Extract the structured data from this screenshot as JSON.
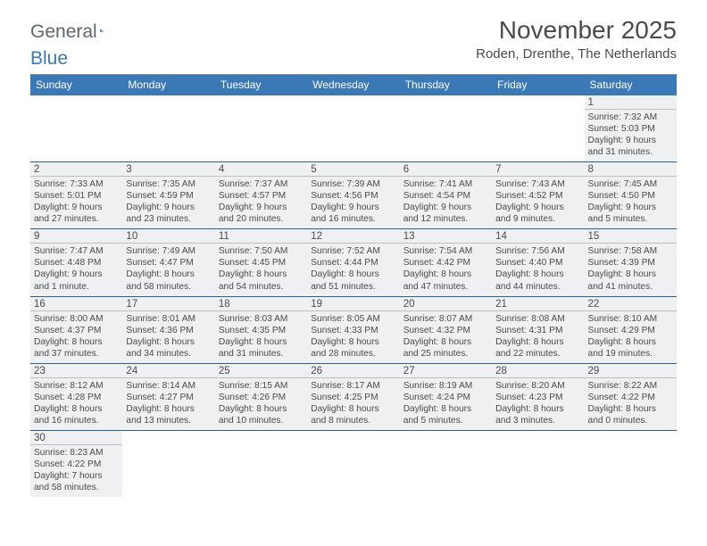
{
  "logo": {
    "text1": "General",
    "text2": "Blue"
  },
  "title": "November 2025",
  "location": "Roden, Drenthe, The Netherlands",
  "weekdays": [
    "Sunday",
    "Monday",
    "Tuesday",
    "Wednesday",
    "Thursday",
    "Friday",
    "Saturday"
  ],
  "colors": {
    "header_bg": "#3a78b6",
    "header_text": "#ffffff",
    "row_border": "#2a5e99",
    "cell_bg": "#eef0f1",
    "text": "#4b4b4b",
    "logo_grey": "#5c6770",
    "logo_blue": "#3a78b6"
  },
  "weeks": [
    [
      {
        "day": ""
      },
      {
        "day": ""
      },
      {
        "day": ""
      },
      {
        "day": ""
      },
      {
        "day": ""
      },
      {
        "day": ""
      },
      {
        "day": "1",
        "sunrise": "Sunrise: 7:32 AM",
        "sunset": "Sunset: 5:03 PM",
        "daylight": "Daylight: 9 hours and 31 minutes."
      }
    ],
    [
      {
        "day": "2",
        "sunrise": "Sunrise: 7:33 AM",
        "sunset": "Sunset: 5:01 PM",
        "daylight": "Daylight: 9 hours and 27 minutes."
      },
      {
        "day": "3",
        "sunrise": "Sunrise: 7:35 AM",
        "sunset": "Sunset: 4:59 PM",
        "daylight": "Daylight: 9 hours and 23 minutes."
      },
      {
        "day": "4",
        "sunrise": "Sunrise: 7:37 AM",
        "sunset": "Sunset: 4:57 PM",
        "daylight": "Daylight: 9 hours and 20 minutes."
      },
      {
        "day": "5",
        "sunrise": "Sunrise: 7:39 AM",
        "sunset": "Sunset: 4:56 PM",
        "daylight": "Daylight: 9 hours and 16 minutes."
      },
      {
        "day": "6",
        "sunrise": "Sunrise: 7:41 AM",
        "sunset": "Sunset: 4:54 PM",
        "daylight": "Daylight: 9 hours and 12 minutes."
      },
      {
        "day": "7",
        "sunrise": "Sunrise: 7:43 AM",
        "sunset": "Sunset: 4:52 PM",
        "daylight": "Daylight: 9 hours and 9 minutes."
      },
      {
        "day": "8",
        "sunrise": "Sunrise: 7:45 AM",
        "sunset": "Sunset: 4:50 PM",
        "daylight": "Daylight: 9 hours and 5 minutes."
      }
    ],
    [
      {
        "day": "9",
        "sunrise": "Sunrise: 7:47 AM",
        "sunset": "Sunset: 4:48 PM",
        "daylight": "Daylight: 9 hours and 1 minute."
      },
      {
        "day": "10",
        "sunrise": "Sunrise: 7:49 AM",
        "sunset": "Sunset: 4:47 PM",
        "daylight": "Daylight: 8 hours and 58 minutes."
      },
      {
        "day": "11",
        "sunrise": "Sunrise: 7:50 AM",
        "sunset": "Sunset: 4:45 PM",
        "daylight": "Daylight: 8 hours and 54 minutes."
      },
      {
        "day": "12",
        "sunrise": "Sunrise: 7:52 AM",
        "sunset": "Sunset: 4:44 PM",
        "daylight": "Daylight: 8 hours and 51 minutes."
      },
      {
        "day": "13",
        "sunrise": "Sunrise: 7:54 AM",
        "sunset": "Sunset: 4:42 PM",
        "daylight": "Daylight: 8 hours and 47 minutes."
      },
      {
        "day": "14",
        "sunrise": "Sunrise: 7:56 AM",
        "sunset": "Sunset: 4:40 PM",
        "daylight": "Daylight: 8 hours and 44 minutes."
      },
      {
        "day": "15",
        "sunrise": "Sunrise: 7:58 AM",
        "sunset": "Sunset: 4:39 PM",
        "daylight": "Daylight: 8 hours and 41 minutes."
      }
    ],
    [
      {
        "day": "16",
        "sunrise": "Sunrise: 8:00 AM",
        "sunset": "Sunset: 4:37 PM",
        "daylight": "Daylight: 8 hours and 37 minutes."
      },
      {
        "day": "17",
        "sunrise": "Sunrise: 8:01 AM",
        "sunset": "Sunset: 4:36 PM",
        "daylight": "Daylight: 8 hours and 34 minutes."
      },
      {
        "day": "18",
        "sunrise": "Sunrise: 8:03 AM",
        "sunset": "Sunset: 4:35 PM",
        "daylight": "Daylight: 8 hours and 31 minutes."
      },
      {
        "day": "19",
        "sunrise": "Sunrise: 8:05 AM",
        "sunset": "Sunset: 4:33 PM",
        "daylight": "Daylight: 8 hours and 28 minutes."
      },
      {
        "day": "20",
        "sunrise": "Sunrise: 8:07 AM",
        "sunset": "Sunset: 4:32 PM",
        "daylight": "Daylight: 8 hours and 25 minutes."
      },
      {
        "day": "21",
        "sunrise": "Sunrise: 8:08 AM",
        "sunset": "Sunset: 4:31 PM",
        "daylight": "Daylight: 8 hours and 22 minutes."
      },
      {
        "day": "22",
        "sunrise": "Sunrise: 8:10 AM",
        "sunset": "Sunset: 4:29 PM",
        "daylight": "Daylight: 8 hours and 19 minutes."
      }
    ],
    [
      {
        "day": "23",
        "sunrise": "Sunrise: 8:12 AM",
        "sunset": "Sunset: 4:28 PM",
        "daylight": "Daylight: 8 hours and 16 minutes."
      },
      {
        "day": "24",
        "sunrise": "Sunrise: 8:14 AM",
        "sunset": "Sunset: 4:27 PM",
        "daylight": "Daylight: 8 hours and 13 minutes."
      },
      {
        "day": "25",
        "sunrise": "Sunrise: 8:15 AM",
        "sunset": "Sunset: 4:26 PM",
        "daylight": "Daylight: 8 hours and 10 minutes."
      },
      {
        "day": "26",
        "sunrise": "Sunrise: 8:17 AM",
        "sunset": "Sunset: 4:25 PM",
        "daylight": "Daylight: 8 hours and 8 minutes."
      },
      {
        "day": "27",
        "sunrise": "Sunrise: 8:19 AM",
        "sunset": "Sunset: 4:24 PM",
        "daylight": "Daylight: 8 hours and 5 minutes."
      },
      {
        "day": "28",
        "sunrise": "Sunrise: 8:20 AM",
        "sunset": "Sunset: 4:23 PM",
        "daylight": "Daylight: 8 hours and 3 minutes."
      },
      {
        "day": "29",
        "sunrise": "Sunrise: 8:22 AM",
        "sunset": "Sunset: 4:22 PM",
        "daylight": "Daylight: 8 hours and 0 minutes."
      }
    ],
    [
      {
        "day": "30",
        "sunrise": "Sunrise: 8:23 AM",
        "sunset": "Sunset: 4:22 PM",
        "daylight": "Daylight: 7 hours and 58 minutes."
      },
      {
        "day": ""
      },
      {
        "day": ""
      },
      {
        "day": ""
      },
      {
        "day": ""
      },
      {
        "day": ""
      },
      {
        "day": ""
      }
    ]
  ]
}
